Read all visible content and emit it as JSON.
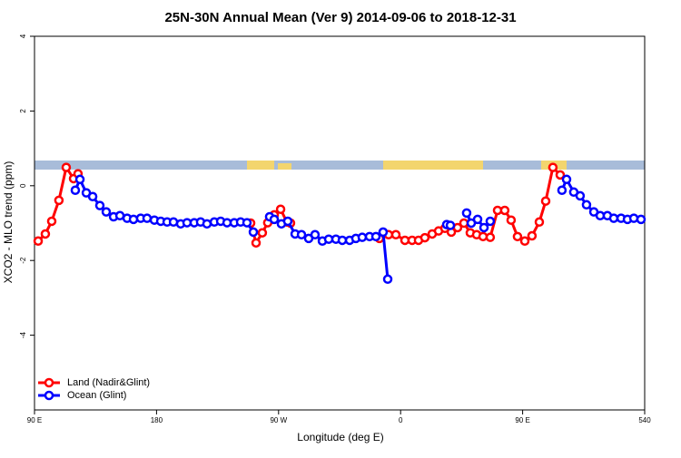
{
  "chart_data": {
    "type": "line",
    "title": "25N-30N Annual Mean (Ver 9)   2014-09-06 to 2018-12-31",
    "x_label": "Longitude (deg E)",
    "y_label": "XCO2 - MLO trend (ppm)",
    "xlim": [
      90,
      540
    ],
    "ylim": [
      -6,
      4
    ],
    "xticks": [
      {
        "value": 90,
        "label": "90 E"
      },
      180,
      {
        "value": 270,
        "label": "90 W"
      },
      {
        "value": 360,
        "label": "0"
      },
      {
        "value": 450,
        "label": "90 E"
      },
      540
    ],
    "yticks": [
      -4,
      -2,
      0,
      2,
      4
    ],
    "legend": "bottom-left",
    "series": [
      {
        "name": "Land (Nadir&Glint)",
        "color": "#ff0000",
        "x": [
          92.7,
          98,
          102.7,
          108,
          113.4,
          118.8,
          122.1,
          125,
          249.4,
          253.4,
          258,
          262,
          266.8,
          271.5,
          276.1,
          278.8,
          300,
          344.4,
          351.1,
          356.5,
          363.2,
          368.5,
          373.2,
          377.9,
          383.3,
          388,
          392.7,
          397.4,
          402,
          406.7,
          411.4,
          416.1,
          420.8,
          426.1,
          431.5,
          436.8,
          441.5,
          446.2,
          451.6,
          456.9,
          462.3,
          467,
          472.3,
          477.7
        ],
        "values": [
          -1.48,
          -1.29,
          -0.95,
          -0.39,
          0.49,
          0.19,
          0.32,
          null,
          -1.0,
          -1.53,
          -1.26,
          -0.99,
          -0.78,
          -0.63,
          -0.97,
          -1.0,
          null,
          -1.41,
          -1.31,
          -1.31,
          -1.46,
          -1.46,
          -1.46,
          -1.39,
          -1.29,
          -1.21,
          -1.14,
          -1.24,
          -1.12,
          -1.0,
          -1.26,
          -1.31,
          -1.36,
          -1.38,
          -0.66,
          -0.66,
          -0.92,
          -1.36,
          -1.48,
          -1.34,
          -0.97,
          -0.41,
          0.49,
          0.29
        ]
      },
      {
        "name": "Ocean (Glint)",
        "color": "#0000ff",
        "x": [
          120.1,
          123.5,
          128.2,
          132.9,
          138.2,
          142.9,
          148.3,
          153,
          158.3,
          163,
          168.3,
          173,
          178.4,
          183.1,
          187.8,
          192.5,
          197.8,
          202.5,
          207.8,
          212.5,
          217.2,
          222.6,
          227.3,
          232,
          237.3,
          242,
          246.7,
          251.4,
          258,
          263.4,
          266.8,
          272.1,
          276.8,
          282.2,
          286.9,
          292.2,
          296.9,
          302.3,
          307,
          312.3,
          317,
          322.4,
          327,
          331.7,
          337.1,
          341.8,
          347.1,
          350.5,
          370,
          394,
          396.7,
          403,
          408.7,
          412.1,
          416.8,
          421.5,
          426.1,
          450,
          479,
          482.4,
          487.7,
          492.4,
          497.1,
          502.5,
          507.2,
          512.5,
          517.2,
          522.6,
          527.3,
          532,
          537.3
        ],
        "values": [
          -0.12,
          0.17,
          -0.19,
          -0.29,
          -0.53,
          -0.7,
          -0.83,
          -0.8,
          -0.87,
          -0.9,
          -0.87,
          -0.87,
          -0.92,
          -0.95,
          -0.97,
          -0.97,
          -1.02,
          -0.99,
          -0.99,
          -0.97,
          -1.02,
          -0.97,
          -0.95,
          -0.99,
          -0.99,
          -0.97,
          -0.99,
          -1.24,
          null,
          -0.83,
          -0.9,
          -1.02,
          -0.95,
          -1.29,
          -1.31,
          -1.41,
          -1.31,
          -1.48,
          -1.43,
          -1.43,
          -1.46,
          -1.46,
          -1.41,
          -1.38,
          -1.36,
          -1.36,
          -1.24,
          -2.5,
          null,
          -1.04,
          -1.06,
          null,
          -0.73,
          -1.0,
          -0.9,
          -1.12,
          -0.95,
          null,
          -0.12,
          0.17,
          -0.17,
          -0.27,
          -0.51,
          -0.7,
          -0.8,
          -0.8,
          -0.87,
          -0.87,
          -0.9,
          -0.87,
          -0.9
        ]
      }
    ]
  }
}
